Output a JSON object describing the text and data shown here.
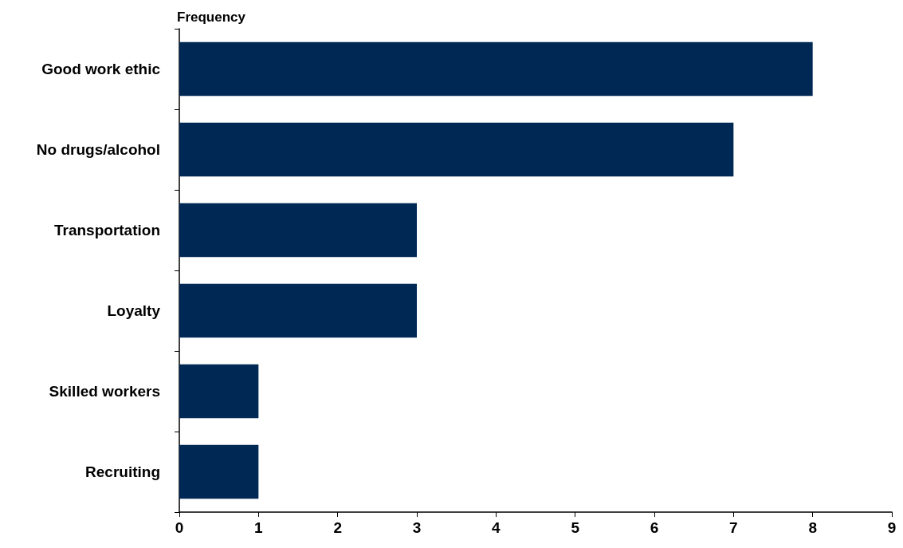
{
  "chart_data": {
    "type": "bar",
    "orientation": "horizontal",
    "xlabel": "Frequency",
    "categories": [
      "Good work ethic",
      "No drugs/alcohol",
      "Transportation",
      "Loyalty",
      "Skilled workers",
      "Recruiting"
    ],
    "values": [
      8,
      7,
      3,
      3,
      1,
      1
    ],
    "color": "#002855",
    "xlim": [
      0,
      9
    ],
    "xticks": [
      0,
      1,
      2,
      3,
      4,
      5,
      6,
      7,
      8,
      9
    ],
    "grid": false
  }
}
